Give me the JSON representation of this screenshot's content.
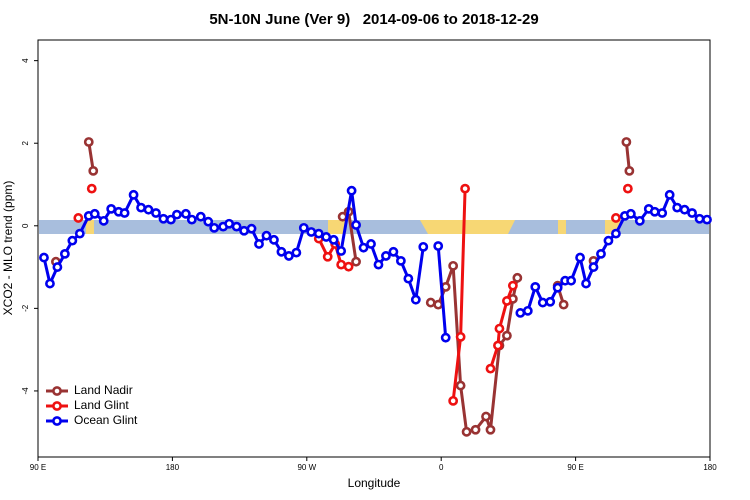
{
  "chart_data": {
    "type": "line",
    "title": "5N-10N June (Ver 9)   2014-09-06 to 2018-12-29",
    "xlabel": "Longitude",
    "ylabel": "XCO2 - MLO trend (ppm)",
    "xlim": [
      -270,
      180
    ],
    "ylim": [
      -5.6,
      4.5
    ],
    "xticks": [
      {
        "value": -270,
        "label": "90 E"
      },
      {
        "value": -180,
        "label": "180"
      },
      {
        "value": -90,
        "label": "90 W"
      },
      0,
      {
        "value": 90,
        "label": "90 E"
      },
      {
        "value": 180,
        "label": "180"
      }
    ],
    "yticks": [
      -4,
      -2,
      0,
      2,
      4
    ],
    "legend": "lower left",
    "series": [
      {
        "name": "Land Nadir",
        "color": "#993333",
        "x": [
          -258,
          null,
          -236,
          -233,
          null,
          -66,
          -62,
          -57,
          null,
          -7,
          -2,
          3,
          8,
          13,
          17,
          23,
          30,
          33,
          39,
          44,
          48,
          51,
          null,
          78,
          82,
          null,
          102,
          null,
          124,
          126
        ],
        "values": [
          -0.87,
          null,
          2.03,
          1.33,
          null,
          0.22,
          0.34,
          -0.87,
          null,
          -1.86,
          -1.91,
          -1.48,
          -0.97,
          -3.87,
          -4.99,
          -4.94,
          -4.62,
          -4.94,
          -2.9,
          -2.66,
          -1.77,
          -1.26,
          null,
          -1.45,
          -1.91,
          null,
          -0.85,
          null,
          2.03,
          1.33
        ]
      },
      {
        "name": "Land Glint",
        "color": "#ee1111",
        "x": [
          -243,
          null,
          -234,
          null,
          -82,
          -76,
          -71,
          -67,
          -62,
          null,
          8,
          13,
          16,
          null,
          33,
          38,
          39,
          44,
          48,
          null,
          117,
          null,
          125
        ],
        "values": [
          0.19,
          null,
          0.9,
          null,
          -0.31,
          -0.75,
          -0.44,
          -0.94,
          -0.99,
          null,
          -4.24,
          -2.69,
          0.9,
          null,
          -3.46,
          -2.9,
          -2.49,
          -1.82,
          -1.45,
          null,
          0.19,
          null,
          0.9
        ]
      },
      {
        "name": "Ocean Glint",
        "color": "#0000ee",
        "x": [
          -266,
          -262,
          -257,
          -252,
          -247,
          -242,
          -236,
          -232,
          -226,
          -221,
          -216,
          -212,
          -206,
          -201,
          -196,
          -191,
          -186,
          -181,
          -177,
          -171,
          -167,
          -161,
          -156,
          -152,
          -146,
          -142,
          -137,
          -132,
          -127,
          -122,
          -117,
          -112,
          -107,
          -102,
          -97,
          -92,
          -87,
          -82,
          -77,
          -72,
          -67,
          -60,
          -57,
          -52,
          -47,
          -42,
          -37,
          -32,
          -27,
          -22,
          -17,
          -12,
          null,
          -2,
          3,
          null,
          53,
          58,
          63,
          68,
          73,
          78,
          83,
          87,
          93,
          97,
          102,
          107,
          112,
          117,
          123,
          127,
          133,
          139,
          143,
          148,
          153,
          158,
          163,
          168,
          173,
          178
        ],
        "values": [
          -0.77,
          -1.4,
          -1.0,
          -0.68,
          -0.36,
          -0.19,
          0.24,
          0.29,
          0.12,
          0.41,
          0.34,
          0.31,
          0.75,
          0.44,
          0.39,
          0.31,
          0.17,
          0.15,
          0.27,
          0.29,
          0.15,
          0.22,
          0.1,
          -0.05,
          -0.02,
          0.05,
          -0.02,
          -0.12,
          -0.07,
          -0.44,
          -0.24,
          -0.34,
          -0.63,
          -0.73,
          -0.65,
          -0.05,
          -0.15,
          -0.19,
          -0.27,
          -0.34,
          -0.61,
          0.85,
          0.02,
          -0.53,
          -0.44,
          -0.94,
          -0.73,
          -0.63,
          -0.85,
          -1.28,
          -1.79,
          -0.51,
          null,
          -0.49,
          -2.71,
          null,
          -2.11,
          -2.06,
          -1.48,
          -1.86,
          -1.84,
          -1.5,
          -1.33,
          -1.33,
          -0.77,
          -1.4,
          -1.0,
          -0.68,
          -0.36,
          -0.19,
          0.24,
          0.29,
          0.12,
          0.41,
          0.34,
          0.31,
          0.75,
          0.44,
          0.39,
          0.31,
          0.17,
          0.15
        ]
      }
    ]
  }
}
